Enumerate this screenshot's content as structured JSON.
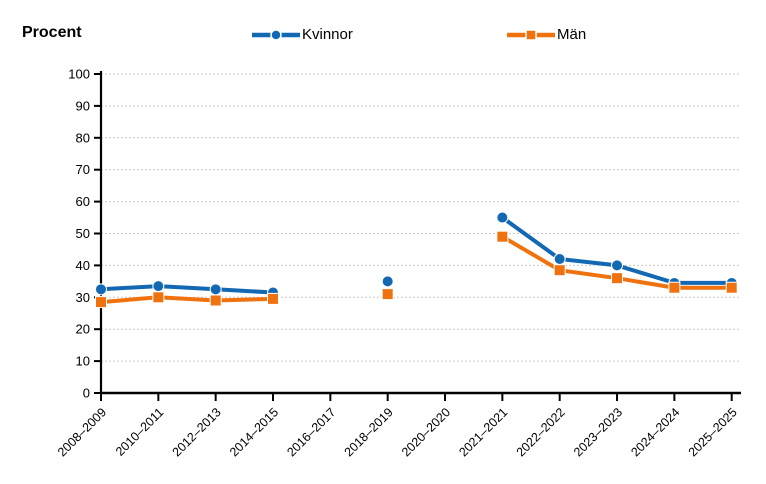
{
  "header": {
    "title": "Procent"
  },
  "chart_data": {
    "type": "line",
    "title": "Procent",
    "categories": [
      "2008–2009",
      "2010–2011",
      "2012–2013",
      "2014–2015",
      "2016–2017",
      "2018–2019",
      "2020–2020",
      "2021–2021",
      "2022–2022",
      "2023–2023",
      "2024–2024",
      "2025–2025"
    ],
    "series": [
      {
        "name": "Kvinnor",
        "color": "#1268b2",
        "marker": "circle",
        "values": [
          32.5,
          33.5,
          32.5,
          31.5,
          null,
          35,
          null,
          55,
          42,
          40,
          34.5,
          34.5
        ]
      },
      {
        "name": "Män",
        "color": "#f0720f",
        "marker": "square",
        "values": [
          28.5,
          30,
          29,
          29.5,
          null,
          31,
          null,
          49,
          38.5,
          36,
          33,
          33
        ]
      }
    ],
    "xlabel": "",
    "ylabel": "Procent",
    "ylim": [
      0,
      100
    ],
    "ytick_step": 10,
    "grid": "horizontal-dashed",
    "legend_position": "top",
    "axis_color": "#000000",
    "grid_color": "#c9c9c9",
    "marker_outline_color": "#ffffff",
    "notes": "gaps (no data) at 2016–2017 and 2020–2020"
  }
}
